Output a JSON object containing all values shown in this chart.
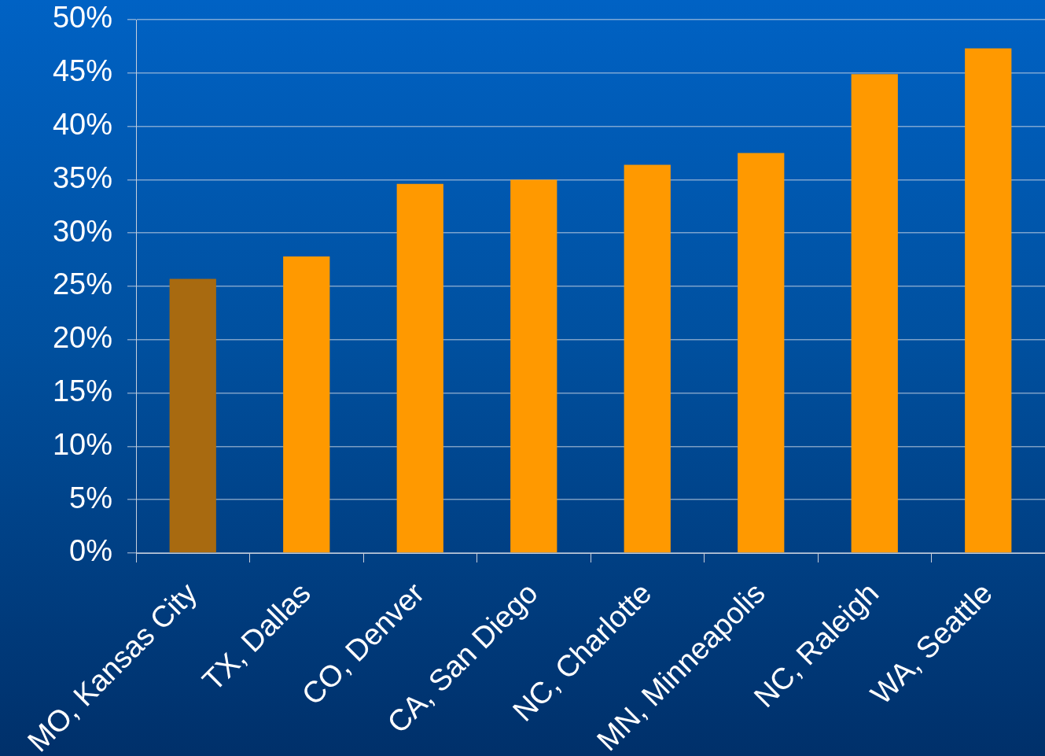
{
  "chart_data": {
    "type": "bar",
    "categories": [
      "MO, Kansas City",
      "TX, Dallas",
      "CO, Denver",
      "CA, San Diego",
      "NC, Charlotte",
      "MN, Minneapolis",
      "NC, Raleigh",
      "WA, Seattle"
    ],
    "values": [
      25.7,
      27.8,
      34.6,
      35.0,
      36.4,
      37.5,
      44.9,
      47.3
    ],
    "colors": [
      "#a86a10",
      "#ff9900",
      "#ff9900",
      "#ff9900",
      "#ff9900",
      "#ff9900",
      "#ff9900",
      "#ff9900"
    ],
    "ylim": [
      0,
      50
    ],
    "yticks": [
      {
        "value": 0,
        "label": "0%"
      },
      {
        "value": 5,
        "label": "5%"
      },
      {
        "value": 10,
        "label": "10%"
      },
      {
        "value": 15,
        "label": "15%"
      },
      {
        "value": 20,
        "label": "20%"
      },
      {
        "value": 25,
        "label": "25%"
      },
      {
        "value": 30,
        "label": "30%"
      },
      {
        "value": 35,
        "label": "35%"
      },
      {
        "value": 40,
        "label": "40%"
      },
      {
        "value": 45,
        "label": "45%"
      },
      {
        "value": 50,
        "label": "50%"
      }
    ],
    "grid": "y"
  }
}
